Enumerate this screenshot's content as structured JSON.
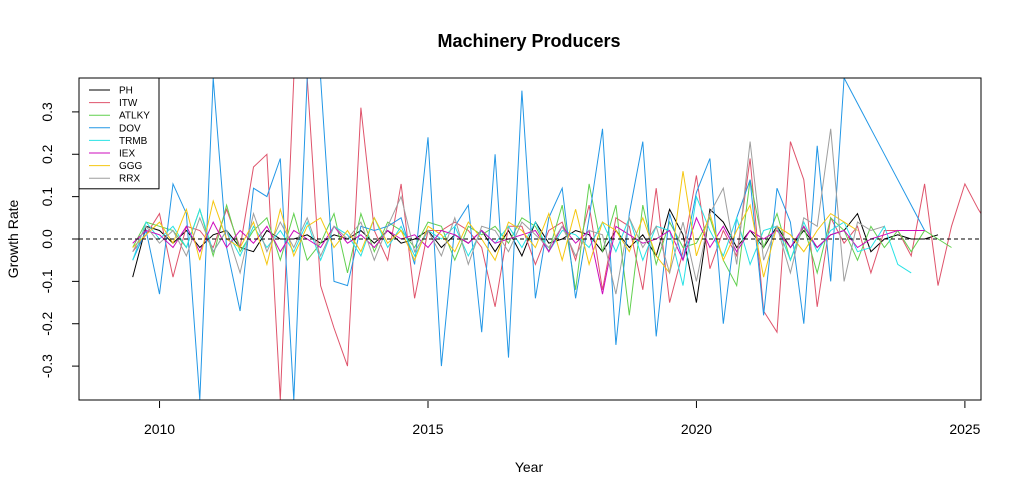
{
  "chart_data": {
    "type": "line",
    "title": "Machinery Producers",
    "xlabel": "Year",
    "ylabel": "Growth Rate",
    "xlim": [
      2008.5,
      2025.3
    ],
    "ylim": [
      -0.38,
      0.38
    ],
    "x_ticks": [
      2010,
      2015,
      2020,
      2025
    ],
    "y_ticks": [
      -0.3,
      -0.2,
      -0.1,
      0.0,
      0.1,
      0.2,
      0.3
    ],
    "reference_line": 0,
    "legend_position": "top-left",
    "grid": false,
    "x_start": 2009.5,
    "x_step": 0.25,
    "series": [
      {
        "name": "PH",
        "color": "#000000",
        "values": [
          -0.09,
          0.03,
          0.02,
          -0.01,
          0.02,
          -0.02,
          0.01,
          0.02,
          -0.02,
          -0.03,
          0.02,
          0.0,
          0.0,
          0.01,
          -0.01,
          0.01,
          0.0,
          0.02,
          -0.01,
          0.02,
          -0.01,
          0.0,
          0.02,
          -0.02,
          0.01,
          -0.01,
          0.02,
          -0.03,
          0.02,
          -0.04,
          0.04,
          -0.01,
          0.0,
          0.02,
          0.01,
          -0.03,
          0.02,
          -0.02,
          0.01,
          -0.04,
          0.07,
          0.01,
          -0.15,
          0.07,
          0.04,
          -0.02,
          0.02,
          -0.02,
          0.03,
          -0.02,
          0.02,
          -0.02,
          0.01,
          0.02,
          0.06,
          -0.03,
          0.0,
          0.01,
          0.0,
          0.0,
          0.01
        ]
      },
      {
        "name": "ITW",
        "color": "#DF536B",
        "values": [
          -0.03,
          0.01,
          0.06,
          -0.09,
          0.03,
          0.02,
          -0.02,
          0.07,
          -0.02,
          0.17,
          0.2,
          -0.38,
          0.38,
          0.38,
          -0.11,
          -0.21,
          -0.3,
          0.31,
          0.02,
          -0.05,
          0.13,
          -0.14,
          0.02,
          0.02,
          0.04,
          0.02,
          -0.02,
          -0.16,
          0.03,
          0.03,
          -0.06,
          0.02,
          0.04,
          -0.05,
          0.08,
          -0.12,
          0.05,
          0.03,
          -0.12,
          0.12,
          -0.15,
          -0.03,
          0.15,
          -0.07,
          0.02,
          -0.04,
          0.19,
          -0.17,
          -0.22,
          0.23,
          0.14,
          -0.16,
          0.05,
          -0.01,
          0.03,
          -0.08,
          0.02,
          0.02,
          -0.04,
          0.13,
          -0.11,
          0.03,
          0.13,
          0.07,
          0.02
        ]
      },
      {
        "name": "ATLKY",
        "color": "#61D04F",
        "values": [
          -0.02,
          0.04,
          0.03,
          0.02,
          -0.02,
          0.07,
          -0.04,
          0.08,
          -0.03,
          0.02,
          0.05,
          -0.05,
          0.06,
          -0.05,
          -0.01,
          0.06,
          -0.08,
          0.06,
          -0.03,
          0.04,
          0.02,
          -0.02,
          0.04,
          0.03,
          -0.05,
          0.03,
          0.01,
          0.03,
          -0.01,
          0.05,
          0.03,
          -0.03,
          0.08,
          -0.12,
          0.13,
          -0.03,
          0.08,
          -0.18,
          0.08,
          -0.06,
          0.04,
          -0.02,
          -0.01,
          0.05,
          -0.05,
          -0.11,
          0.14,
          -0.02,
          0.06,
          -0.05,
          0.03,
          -0.08,
          0.05,
          0.02,
          -0.05,
          0.03,
          -0.02,
          0.02,
          -0.03,
          0.02,
          0.0,
          -0.02
        ]
      },
      {
        "name": "DOV",
        "color": "#2297E6",
        "values": [
          -0.05,
          0.02,
          -0.13,
          0.13,
          0.06,
          -0.38,
          0.38,
          -0.02,
          -0.17,
          0.12,
          0.1,
          0.19,
          -0.38,
          0.38,
          0.38,
          -0.1,
          -0.11,
          0.03,
          0.02,
          0.03,
          0.05,
          -0.06,
          0.24,
          -0.3,
          0.03,
          0.08,
          -0.22,
          0.2,
          -0.28,
          0.35,
          -0.14,
          0.05,
          0.12,
          -0.14,
          0.05,
          0.26,
          -0.25,
          0.06,
          0.23,
          -0.23,
          0.06,
          -0.05,
          0.11,
          0.19,
          -0.2,
          0.05,
          0.14,
          -0.18,
          0.12,
          0.04,
          -0.2,
          0.22,
          -0.1,
          0.38,
          0.32,
          0.26,
          0.2,
          0.14,
          0.08,
          0.02
        ]
      },
      {
        "name": "TRMB",
        "color": "#28E2E5",
        "values": [
          -0.05,
          0.04,
          0.0,
          0.03,
          -0.02,
          0.07,
          -0.03,
          0.02,
          -0.04,
          0.03,
          -0.02,
          0.02,
          -0.03,
          0.04,
          -0.05,
          0.03,
          0.01,
          -0.04,
          0.05,
          -0.02,
          0.03,
          -0.04,
          0.02,
          0.0,
          0.03,
          -0.04,
          0.02,
          -0.01,
          0.03,
          -0.02,
          0.04,
          -0.03,
          0.02,
          0.01,
          -0.02,
          0.04,
          -0.03,
          0.05,
          -0.05,
          0.03,
          0.02,
          -0.11,
          0.1,
          0.02,
          -0.04,
          0.05,
          -0.06,
          0.02,
          0.03,
          -0.05,
          0.04,
          -0.03,
          0.02,
          0.04,
          -0.03,
          -0.02,
          0.03,
          -0.06,
          -0.08
        ]
      },
      {
        "name": "IEX",
        "color": "#CD0BBC",
        "values": [
          -0.01,
          0.02,
          0.01,
          -0.02,
          0.03,
          -0.03,
          0.04,
          -0.02,
          0.02,
          -0.01,
          0.03,
          -0.03,
          0.02,
          0.0,
          -0.02,
          0.03,
          -0.01,
          0.01,
          -0.02,
          0.02,
          0.0,
          0.01,
          -0.02,
          0.02,
          0.01,
          -0.01,
          0.02,
          -0.01,
          0.0,
          0.01,
          0.02,
          -0.03,
          0.03,
          -0.01,
          0.02,
          -0.13,
          0.03,
          0.01,
          -0.01,
          0.0,
          0.02,
          -0.05,
          0.05,
          -0.02,
          0.03,
          -0.03,
          0.02,
          0.0,
          0.02,
          -0.02,
          0.03,
          -0.02,
          0.01,
          0.02,
          -0.02,
          0.0,
          0.01,
          0.02,
          0.02,
          0.02
        ]
      },
      {
        "name": "GGG",
        "color": "#F5C710",
        "values": [
          -0.02,
          0.01,
          0.04,
          -0.01,
          0.07,
          -0.05,
          0.09,
          0.0,
          -0.02,
          0.04,
          -0.06,
          0.07,
          -0.04,
          0.03,
          0.05,
          -0.02,
          0.02,
          -0.03,
          0.05,
          -0.01,
          0.02,
          -0.05,
          0.03,
          0.01,
          -0.03,
          0.04,
          0.0,
          -0.05,
          0.04,
          0.02,
          -0.02,
          0.06,
          -0.05,
          0.07,
          -0.06,
          0.04,
          0.02,
          -0.03,
          0.05,
          -0.04,
          -0.08,
          0.16,
          -0.04,
          0.06,
          -0.05,
          0.02,
          0.08,
          -0.09,
          0.03,
          0.01,
          -0.03,
          0.02,
          0.06,
          0.04,
          0.02
        ]
      },
      {
        "name": "RRX",
        "color": "#9E9E9E",
        "values": [
          -0.03,
          0.03,
          -0.01,
          0.02,
          -0.04,
          0.05,
          -0.03,
          0.02,
          -0.08,
          0.06,
          -0.03,
          0.04,
          -0.02,
          0.05,
          -0.04,
          0.03,
          0.0,
          0.04,
          -0.05,
          0.03,
          0.1,
          -0.03,
          0.02,
          -0.04,
          0.05,
          -0.06,
          0.03,
          0.02,
          -0.03,
          0.04,
          0.01,
          -0.02,
          0.03,
          -0.04,
          0.02,
          0.01,
          -0.13,
          0.05,
          -0.02,
          0.03,
          -0.08,
          0.04,
          -0.1,
          0.06,
          0.12,
          -0.06,
          0.23,
          -0.05,
          0.03,
          -0.08,
          0.05,
          0.03,
          0.26,
          -0.1,
          0.04,
          0.02,
          0.03
        ]
      }
    ]
  }
}
